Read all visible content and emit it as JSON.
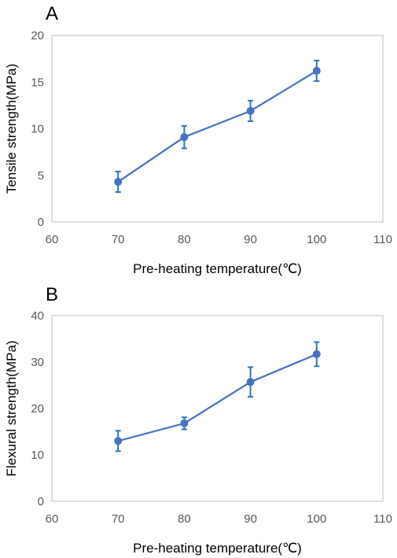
{
  "colors": {
    "series": "#4472C4",
    "errorbar": "#2E75B6",
    "frame": "#BFBFBF",
    "tick_text": "#595959"
  },
  "chart_data": [
    {
      "type": "line",
      "panel_label": "A",
      "xlabel": "Pre-heating temperature(℃)",
      "ylabel": "Tensile strength(MPa)",
      "xlim": [
        60,
        110
      ],
      "ylim": [
        0,
        20
      ],
      "xticks": [
        "60",
        "70",
        "80",
        "90",
        "100",
        "110"
      ],
      "yticks": [
        "0",
        "5",
        "10",
        "15",
        "20"
      ],
      "grid": false,
      "x": [
        70,
        80,
        90,
        100
      ],
      "series": [
        {
          "values": [
            4.3,
            9.1,
            11.9,
            16.2
          ],
          "errors": [
            1.1,
            1.2,
            1.1,
            1.1
          ]
        }
      ]
    },
    {
      "type": "line",
      "panel_label": "B",
      "xlabel": "Pre-heating temperature(℃)",
      "ylabel": "Flexural strength(MPa)",
      "xlim": [
        60,
        110
      ],
      "ylim": [
        0,
        40
      ],
      "xticks": [
        "60",
        "70",
        "80",
        "90",
        "100",
        "110"
      ],
      "yticks": [
        "0",
        "10",
        "20",
        "30",
        "40"
      ],
      "grid": false,
      "x": [
        70,
        80,
        90,
        100
      ],
      "series": [
        {
          "values": [
            13.0,
            16.8,
            25.7,
            31.7
          ],
          "errors": [
            2.2,
            1.3,
            3.2,
            2.6
          ]
        }
      ]
    }
  ]
}
